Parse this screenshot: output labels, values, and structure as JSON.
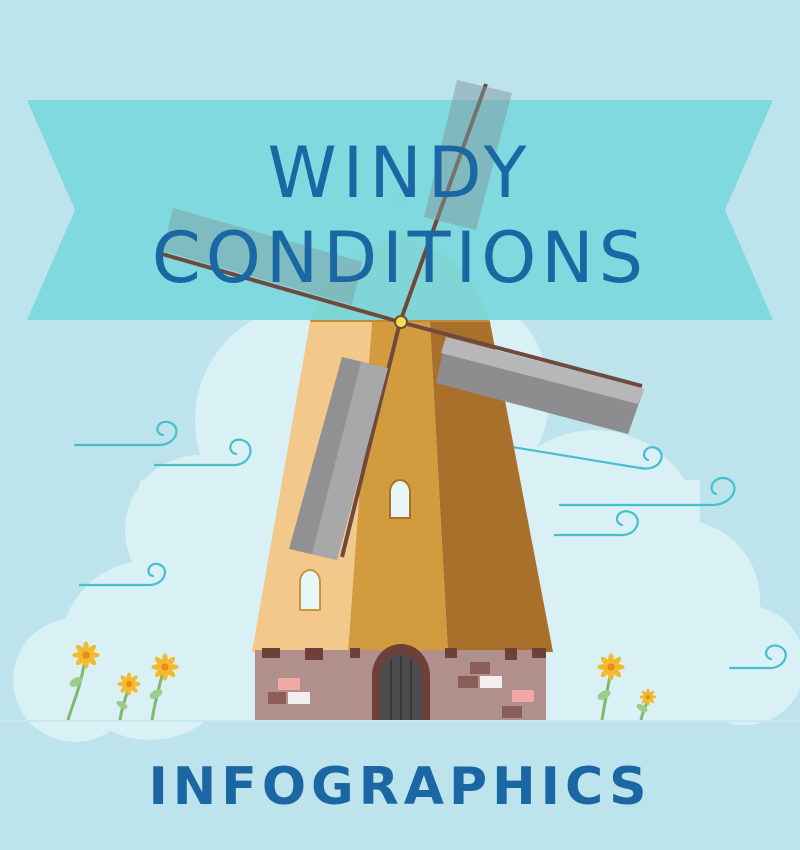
{
  "banner": {
    "title_line1": "WINDY",
    "title_line2": "CONDITIONS"
  },
  "footer": {
    "label": "INFOGRAPHICS"
  },
  "colors": {
    "background": "#bde3ec",
    "banner": "#7dd8de",
    "cloud": "#d9f0f5",
    "text": "#1a67a4",
    "tower_light": "#f2c98a",
    "tower_mid": "#d29c3e",
    "tower_dark": "#a8702a",
    "base": "#b18f8d",
    "blade": "#a5a5a8",
    "swirl": "#45bfd0",
    "flower": "#f3bb2c"
  }
}
